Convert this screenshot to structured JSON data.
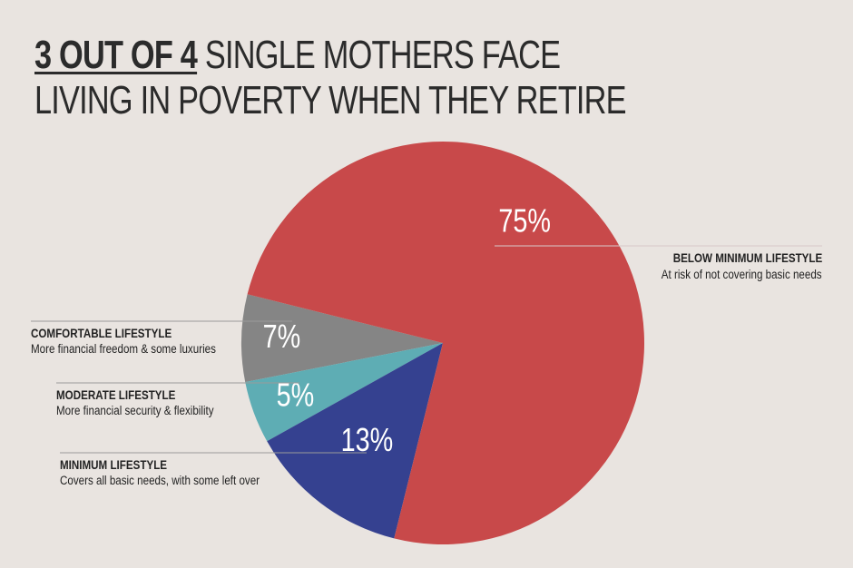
{
  "headline": {
    "highlight": "3 OUT OF 4",
    "line1_rest": " SINGLE MOTHERS FACE",
    "line2": "LIVING IN POVERTY WHEN THEY RETIRE"
  },
  "chart_data": {
    "type": "pie",
    "slices": [
      {
        "key": "below",
        "label": "BELOW MINIMUM LIFESTYLE",
        "description": "At risk of not covering basic needs",
        "value": 75,
        "display": "75%",
        "color": "#c8494a"
      },
      {
        "key": "comfortable",
        "label": "COMFORTABLE LIFESTYLE",
        "description": "More financial freedom & some luxuries",
        "value": 7,
        "display": "7%",
        "color": "#858585"
      },
      {
        "key": "moderate",
        "label": "MODERATE LIFESTYLE",
        "description": "More financial security & flexibility",
        "value": 5,
        "display": "5%",
        "color": "#5eadb4"
      },
      {
        "key": "minimum",
        "label": "MINIMUM LIFESTYLE",
        "description": "Covers all basic needs, with some left over",
        "value": 13,
        "display": "13%",
        "color": "#354190"
      }
    ]
  }
}
